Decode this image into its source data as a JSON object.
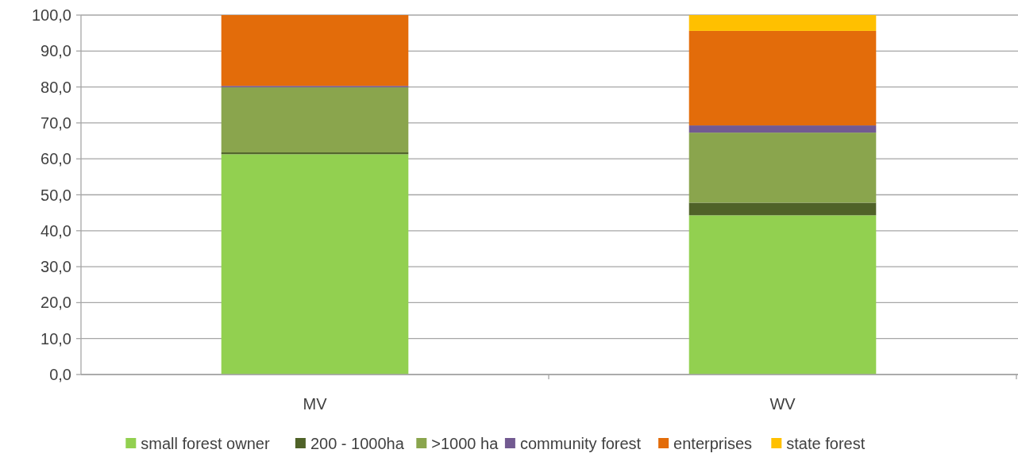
{
  "chart_data": {
    "type": "bar",
    "stacked": true,
    "categories": [
      "MV",
      "WV"
    ],
    "series": [
      {
        "name": "small forest owner",
        "color": "#92d050",
        "values": [
          61.3,
          44.3
        ]
      },
      {
        "name": "200 - 1000ha",
        "color": "#4f6228",
        "values": [
          0.5,
          3.5
        ]
      },
      {
        "name": ">1000 ha",
        "color": "#8aa54d",
        "values": [
          18.1,
          19.5
        ]
      },
      {
        "name": "community forest",
        "color": "#725a91",
        "values": [
          0.4,
          2.0
        ]
      },
      {
        "name": "enterprises",
        "color": "#e36c0a",
        "values": [
          19.7,
          26.3
        ]
      },
      {
        "name": "state forest",
        "color": "#ffc000",
        "values": [
          0,
          4.4
        ]
      }
    ],
    "ylim": [
      0,
      100
    ],
    "yticks": [
      {
        "value": 0,
        "label": "0,0"
      },
      {
        "value": 10,
        "label": "10,0"
      },
      {
        "value": 20,
        "label": "20,0"
      },
      {
        "value": 30,
        "label": "30,0"
      },
      {
        "value": 40,
        "label": "40,0"
      },
      {
        "value": 50,
        "label": "50,0"
      },
      {
        "value": 60,
        "label": "60,0"
      },
      {
        "value": 70,
        "label": "70,0"
      },
      {
        "value": 80,
        "label": "80,0"
      },
      {
        "value": 90,
        "label": "90,0"
      },
      {
        "value": 100,
        "label": "100,0"
      }
    ],
    "grid": "y",
    "legend": "bottom"
  }
}
